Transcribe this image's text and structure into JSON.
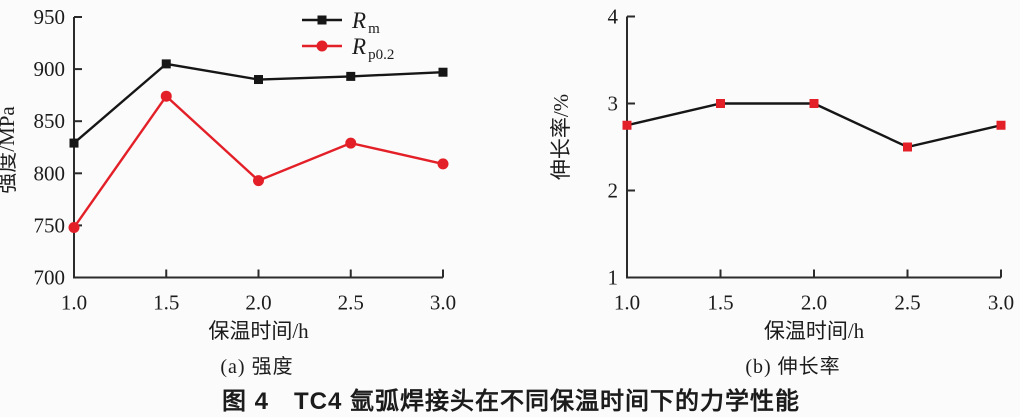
{
  "figure": {
    "main_caption": "图 4　TC4 氩弧焊接头在不同保温时间下的力学性能"
  },
  "colors": {
    "background": "#fbfbfb",
    "text": "#1c1c1c",
    "axis": "#2b2b2b",
    "series_black": "#161616",
    "series_red": "#e32028"
  },
  "chart_data": [
    {
      "type": "line",
      "title": "(a) 强度",
      "xlabel": "保温时间/h",
      "ylabel": "强度/MPa",
      "x": [
        1.0,
        1.5,
        2.0,
        2.5,
        3.0
      ],
      "xtick_labels": [
        "1.0",
        "1.5",
        "2.0",
        "2.5",
        "3.0"
      ],
      "xlim": [
        1.0,
        3.0
      ],
      "ylim": [
        700,
        950
      ],
      "yticks": [
        700,
        750,
        800,
        850,
        900,
        950
      ],
      "ytick_labels": [
        "700",
        "750",
        "800",
        "850",
        "900",
        "950"
      ],
      "grid": false,
      "legend_position": "top-center-inside",
      "series": [
        {
          "name": "Rm",
          "legend_main": "R",
          "legend_sub": "m",
          "color": "#161616",
          "marker": "square",
          "marker_color": "#161616",
          "values": [
            829,
            905,
            890,
            893,
            897
          ]
        },
        {
          "name": "Rp0.2",
          "legend_main": "R",
          "legend_sub": "p0.2",
          "color": "#e32028",
          "marker": "circle",
          "marker_color": "#e32028",
          "values": [
            748,
            874,
            793,
            829,
            809
          ]
        }
      ]
    },
    {
      "type": "line",
      "title": "(b) 伸长率",
      "xlabel": "保温时间/h",
      "ylabel": "伸长率/%",
      "x": [
        1.0,
        1.5,
        2.0,
        2.5,
        3.0
      ],
      "xtick_labels": [
        "1.0",
        "1.5",
        "2.0",
        "2.5",
        "3.0"
      ],
      "xlim": [
        1.0,
        3.0
      ],
      "ylim": [
        1,
        4
      ],
      "yticks": [
        1,
        2,
        3,
        4
      ],
      "ytick_labels": [
        "1",
        "2",
        "3",
        "4"
      ],
      "grid": false,
      "legend_position": "none",
      "series": [
        {
          "name": "elongation",
          "color": "#161616",
          "marker": "square",
          "marker_color": "#e32028",
          "values": [
            2.75,
            3.0,
            3.0,
            2.5,
            2.75
          ]
        }
      ]
    }
  ]
}
